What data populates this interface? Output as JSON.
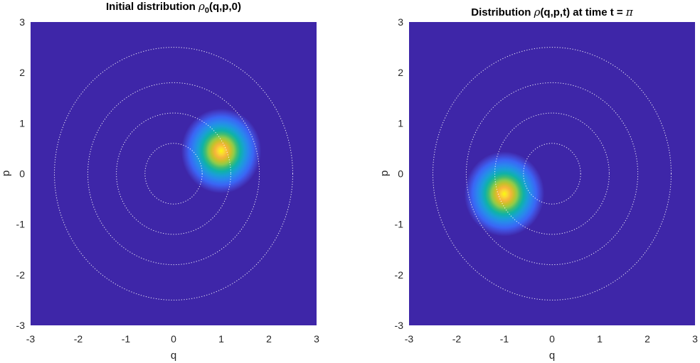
{
  "chart_data": [
    {
      "type": "heatmap",
      "title_prefix": "Initial distribution ",
      "title_symbol": "ρ",
      "title_subscript": "0",
      "title_suffix": "(q,p,0)",
      "xlabel": "q",
      "ylabel": "p",
      "xlim": [
        -3,
        3
      ],
      "ylim": [
        -3,
        3
      ],
      "xticks": [
        "-3",
        "-2",
        "-1",
        "0",
        "1",
        "2",
        "3"
      ],
      "yticks": [
        "-3",
        "-2",
        "-1",
        "0",
        "1",
        "2",
        "3"
      ],
      "colormap": "parula",
      "background_color": "#3e26a8",
      "peak": {
        "q": 1.0,
        "p": 0.45
      },
      "sigma": 0.28,
      "contour_radii": [
        0.6,
        1.2,
        1.8,
        2.5
      ],
      "grid": false
    },
    {
      "type": "heatmap",
      "title_prefix": "Distribution ",
      "title_symbol": "ρ",
      "title_subscript": "",
      "title_suffix": "(q,p,t) at time t = ",
      "title_symbol_end": "π",
      "xlabel": "q",
      "ylabel": "p",
      "xlim": [
        -3,
        3
      ],
      "ylim": [
        -3,
        3
      ],
      "xticks": [
        "-3",
        "-2",
        "-1",
        "0",
        "1",
        "2",
        "3"
      ],
      "yticks": [
        "-3",
        "-2",
        "-1",
        "0",
        "1",
        "2",
        "3"
      ],
      "colormap": "parula",
      "background_color": "#3e26a8",
      "peak": {
        "q": -1.0,
        "p": -0.4
      },
      "sigma": 0.28,
      "contour_radii": [
        0.6,
        1.2,
        1.8,
        2.5
      ],
      "grid": false
    }
  ]
}
